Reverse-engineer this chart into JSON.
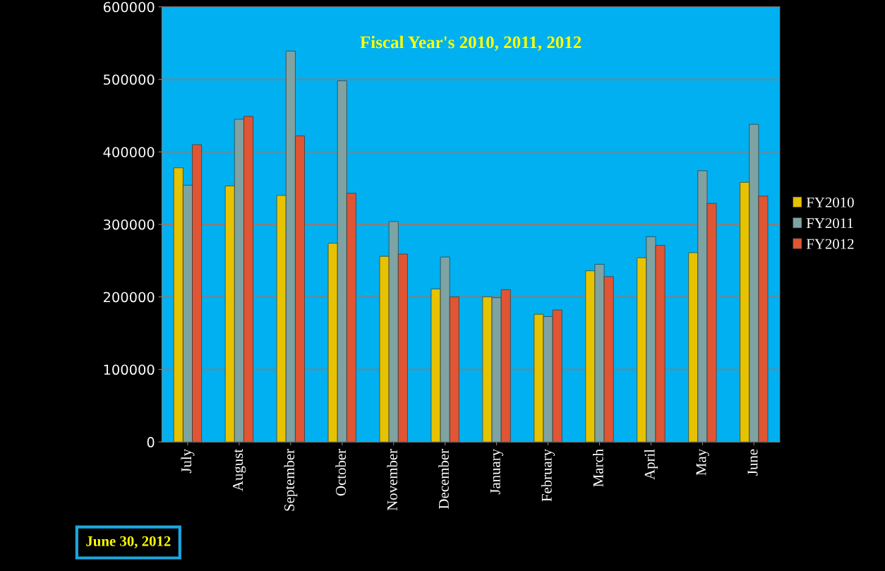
{
  "chart_data": {
    "type": "bar",
    "subtitle": "Fiscal Year's 2010, 2011, 2012",
    "categories": [
      "July",
      "August",
      "September",
      "October",
      "November",
      "December",
      "January",
      "February",
      "March",
      "April",
      "May",
      "June"
    ],
    "series": [
      {
        "name": "FY2010",
        "color": "#e6c200",
        "values": [
          378000,
          353000,
          340000,
          274000,
          256000,
          211000,
          200000,
          176000,
          236000,
          254000,
          261000,
          358000
        ]
      },
      {
        "name": "FY2011",
        "color": "#7fa3a3",
        "values": [
          354000,
          445000,
          539000,
          498000,
          304000,
          255000,
          199000,
          173000,
          245000,
          283000,
          374000,
          438000
        ]
      },
      {
        "name": "FY2012",
        "color": "#e05533",
        "values": [
          410000,
          449000,
          422000,
          343000,
          259000,
          200000,
          210000,
          182000,
          228000,
          271000,
          329000,
          339000
        ]
      }
    ],
    "ylim": [
      0,
      600000
    ],
    "yticks": [
      0,
      100000,
      200000,
      300000,
      400000,
      500000,
      600000
    ],
    "grid": "y",
    "legend": "right",
    "annotations": [
      "June 30, 2012"
    ]
  }
}
